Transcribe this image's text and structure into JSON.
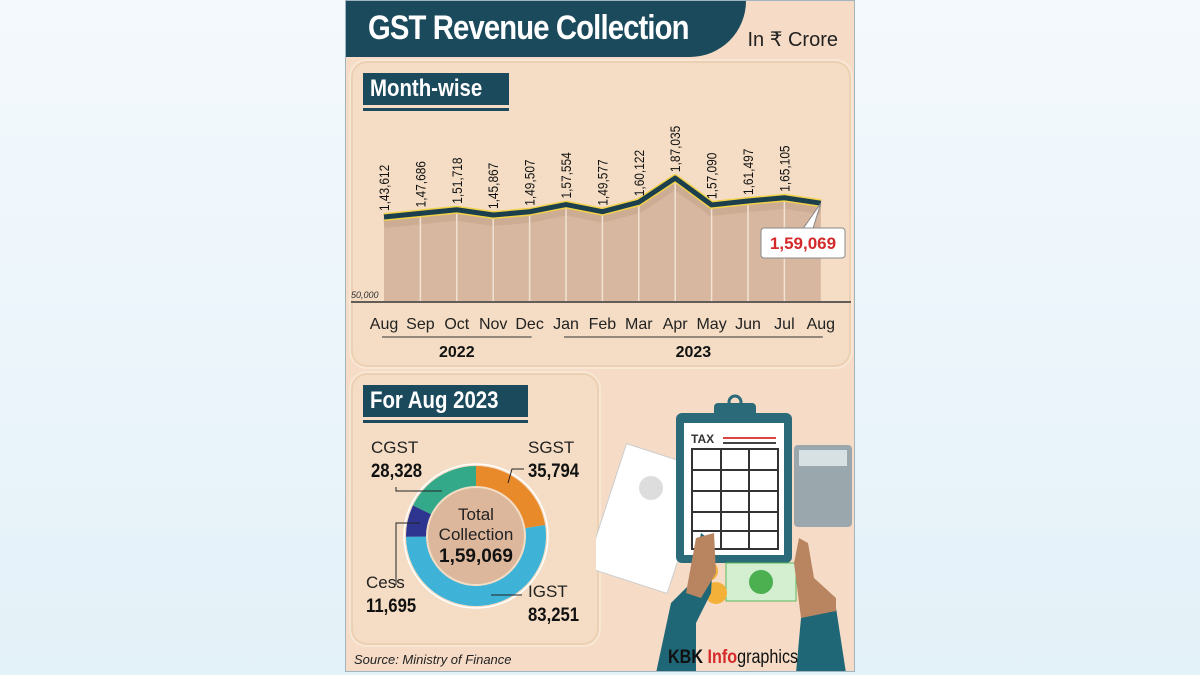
{
  "header": {
    "title": "GST Revenue Collection",
    "unit": "In ₹ Crore"
  },
  "monthwise": {
    "tag": "Month-wise",
    "highlight_label": "1,59,069"
  },
  "breakdown": {
    "tag": "For Aug 2023",
    "center_label_1": "Total",
    "center_label_2": "Collection",
    "center_value": "1,59,069",
    "segments": [
      {
        "name": "SGST",
        "label": "35,794",
        "value": 35794,
        "color": "#e98a2a"
      },
      {
        "name": "IGST",
        "label": "83,251",
        "value": 83251,
        "color": "#3fb2d8"
      },
      {
        "name": "Cess",
        "label": "11,695",
        "value": 11695,
        "color": "#2d3590"
      },
      {
        "name": "CGST",
        "label": "28,328",
        "value": 28328,
        "color": "#34a98a"
      }
    ]
  },
  "illustration": {
    "clipboard_title": "TAX"
  },
  "footer": {
    "source": "Source: Ministry of Finance",
    "brand_1": "KBK ",
    "brand_2": "Info",
    "brand_3": "graphics"
  },
  "colors": {
    "navy": "#1b4a5c",
    "background": "#f6dcc7",
    "area": "#d8b7a0",
    "highlight": "#d42a2a"
  },
  "chart_data": {
    "type": "area",
    "categories": [
      "Aug",
      "Sep",
      "Oct",
      "Nov",
      "Dec",
      "Jan",
      "Feb",
      "Mar",
      "Apr",
      "May",
      "Jun",
      "Jul",
      "Aug"
    ],
    "year_groups": [
      {
        "label": "2022",
        "from": 0,
        "to": 4
      },
      {
        "label": "2023",
        "from": 5,
        "to": 12
      }
    ],
    "values": [
      143612,
      147686,
      151718,
      145867,
      149507,
      157554,
      149577,
      160122,
      187035,
      157090,
      161497,
      165105,
      159069
    ],
    "data_labels": [
      "1,43,612",
      "1,47,686",
      "1,51,718",
      "1,45,867",
      "1,49,507",
      "1,57,554",
      "1,49,577",
      "1,60,122",
      "1,87,035",
      "1,57,090",
      "1,61,497",
      "1,65,105",
      "1,59,069"
    ],
    "y_baseline_label": "50,000",
    "ylim": [
      50000,
      190000
    ]
  }
}
